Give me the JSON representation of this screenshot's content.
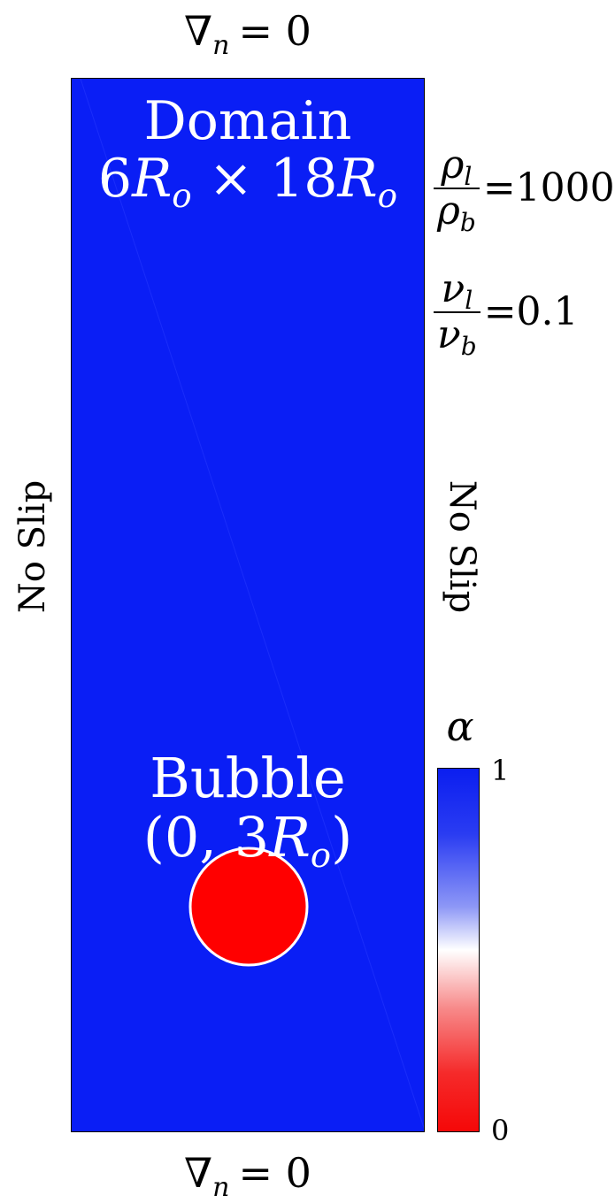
{
  "boundary_conditions": {
    "top": {
      "symbol": "∇",
      "subscript": "n",
      "rest": "= 0"
    },
    "bottom": {
      "symbol": "∇",
      "subscript": "n",
      "rest": "= 0"
    },
    "left": "No Slip",
    "right": "No Slip"
  },
  "domain": {
    "title": "Domain",
    "size_a": "6",
    "size_b": "18",
    "symbol": "R",
    "subscript": "o",
    "times": "×",
    "fill_color": "#0a1ef5"
  },
  "bubble": {
    "title": "Bubble",
    "open_paren": "(0, 3",
    "symbol": "R",
    "subscript": "o",
    "close_paren": ")",
    "fill_color": "#ff0000",
    "edge_color": "#ffffff"
  },
  "ratios": [
    {
      "num": "ρ",
      "num_sub": "l",
      "den": "ρ",
      "den_sub": "b",
      "value": "=1000"
    },
    {
      "num": "ν",
      "num_sub": "l",
      "den": "ν",
      "den_sub": "b",
      "value": "=0.1"
    }
  ],
  "colorbar": {
    "title": "α",
    "max_label": "1",
    "min_label": "0",
    "top_color": "#0b1ef0",
    "mid_color": "#ffffff",
    "bottom_color": "#f50808"
  }
}
